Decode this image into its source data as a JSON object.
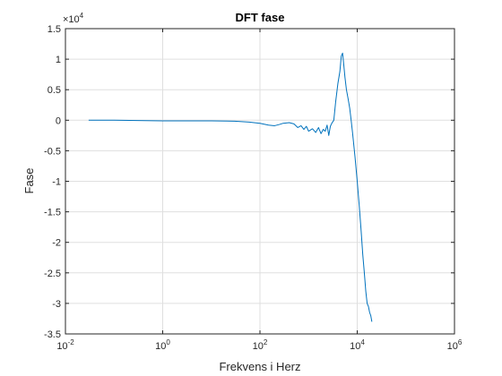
{
  "chart_data": {
    "type": "line",
    "title": "DFT fase",
    "xlabel": "Frekvens i Herz",
    "ylabel": "Fase",
    "x_scale": "log",
    "xlim": [
      0.01,
      1000000
    ],
    "ylim": [
      -35000,
      15000
    ],
    "y_exponent_label": "×10",
    "y_exponent": "4",
    "x_ticks": [
      {
        "base": "10",
        "exp": "-2",
        "value": 0.01
      },
      {
        "base": "10",
        "exp": "0",
        "value": 1
      },
      {
        "base": "10",
        "exp": "2",
        "value": 100
      },
      {
        "base": "10",
        "exp": "4",
        "value": 10000
      },
      {
        "base": "10",
        "exp": "6",
        "value": 1000000
      }
    ],
    "y_ticks": [
      {
        "label": "1.5",
        "value": 15000
      },
      {
        "label": "1",
        "value": 10000
      },
      {
        "label": "0.5",
        "value": 5000
      },
      {
        "label": "0",
        "value": 0
      },
      {
        "label": "-0.5",
        "value": -5000
      },
      {
        "label": "-1",
        "value": -10000
      },
      {
        "label": "-1.5",
        "value": -15000
      },
      {
        "label": "-2",
        "value": -20000
      },
      {
        "label": "-2.5",
        "value": -25000
      },
      {
        "label": "-3",
        "value": -30000
      },
      {
        "label": "-3.5",
        "value": -35000
      }
    ],
    "grid": true,
    "line_color": "#0072BD",
    "x": [
      0.03,
      0.1,
      0.3,
      1,
      3,
      10,
      30,
      60,
      100,
      150,
      200,
      250,
      300,
      400,
      500,
      600,
      700,
      800,
      900,
      1000,
      1200,
      1400,
      1600,
      1800,
      2000,
      2200,
      2400,
      2600,
      2800,
      3000,
      3300,
      3600,
      4000,
      4400,
      4700,
      5000,
      5300,
      5600,
      6000,
      6500,
      7000,
      7500,
      8000,
      9000,
      10000,
      11000,
      12000,
      13000,
      14000,
      15000,
      16000,
      17000,
      18000,
      19000,
      20000
    ],
    "y": [
      0,
      0,
      -50,
      -100,
      -100,
      -100,
      -150,
      -300,
      -500,
      -800,
      -900,
      -700,
      -500,
      -400,
      -600,
      -1200,
      -900,
      -1500,
      -1000,
      -1800,
      -1400,
      -2000,
      -1200,
      -2200,
      -1500,
      -1800,
      -800,
      -2500,
      -1000,
      -500,
      0,
      3000,
      6000,
      8000,
      10500,
      11000,
      9000,
      7000,
      5000,
      3500,
      2000,
      0,
      -2000,
      -6000,
      -10000,
      -14000,
      -18000,
      -22000,
      -25000,
      -28000,
      -30000,
      -30500,
      -31500,
      -32000,
      -33000
    ]
  }
}
